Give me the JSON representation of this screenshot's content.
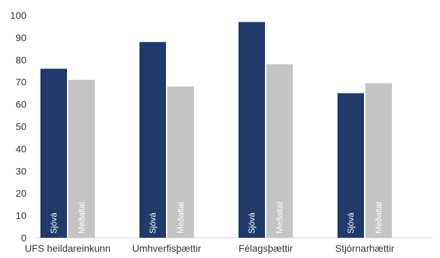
{
  "chart_data": {
    "type": "bar",
    "title": "",
    "xlabel": "",
    "ylabel": "",
    "ylim": [
      0,
      100
    ],
    "yticks": [
      0,
      10,
      20,
      30,
      40,
      50,
      60,
      70,
      80,
      90,
      100
    ],
    "grid": false,
    "legend": "none",
    "categories": [
      "UFS heildareinkunn",
      "Umhverfisþættir",
      "Félagsþættir",
      "Stjórnarhættir"
    ],
    "series": [
      {
        "name": "Sjóvá",
        "values": [
          76,
          88,
          97,
          65
        ],
        "color": "#1f3a6b"
      },
      {
        "name": "Meðaltal",
        "values": [
          71,
          68,
          78,
          69.5
        ],
        "color": "#c4c4c4"
      }
    ]
  }
}
